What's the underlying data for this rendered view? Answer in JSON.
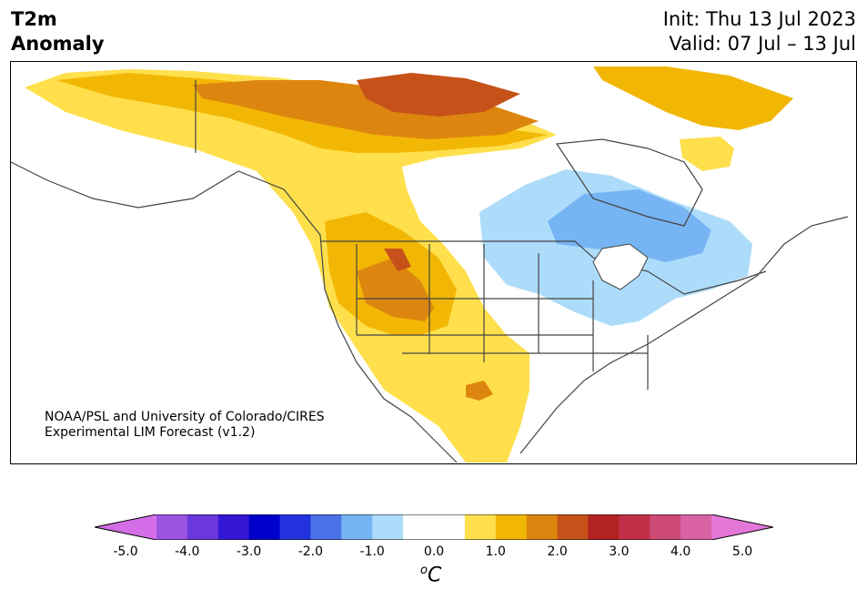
{
  "header": {
    "title_line1": "T2m",
    "title_line2": "Anomaly",
    "init": "Init: Thu 13 Jul 2023",
    "valid": "Valid: 07 Jul – 13 Jul"
  },
  "credit": {
    "line1": "NOAA/PSL and University of Colorado/CIRES",
    "line2": "Experimental LIM Forecast (v1.2)"
  },
  "colorbar": {
    "tick_labels": [
      "-5.0",
      "-4.0",
      "-3.0",
      "-2.0",
      "-1.0",
      "0.0",
      "1.0",
      "2.0",
      "3.0",
      "4.0",
      "5.0"
    ],
    "colors": [
      "#d36ee8",
      "#9b54e0",
      "#6a38dc",
      "#3417d4",
      "#0000cc",
      "#2233dd",
      "#4a72e6",
      "#77b4f3",
      "#acdcfa",
      "#ffffff",
      "#ffffff",
      "#ffe04c",
      "#f2b705",
      "#dd860f",
      "#c6521a",
      "#b22222",
      "#c03048",
      "#cc4a74",
      "#d862a4",
      "#e478d8"
    ],
    "unit_sup": "o",
    "unit": "C"
  },
  "legend_colors": {
    "light_yellow": "#ffe04c",
    "yellow": "#f2b705",
    "orange": "#dd860f",
    "dark_orange": "#c6521a",
    "light_blue": "#acdcfa",
    "blue": "#77b4f3"
  }
}
